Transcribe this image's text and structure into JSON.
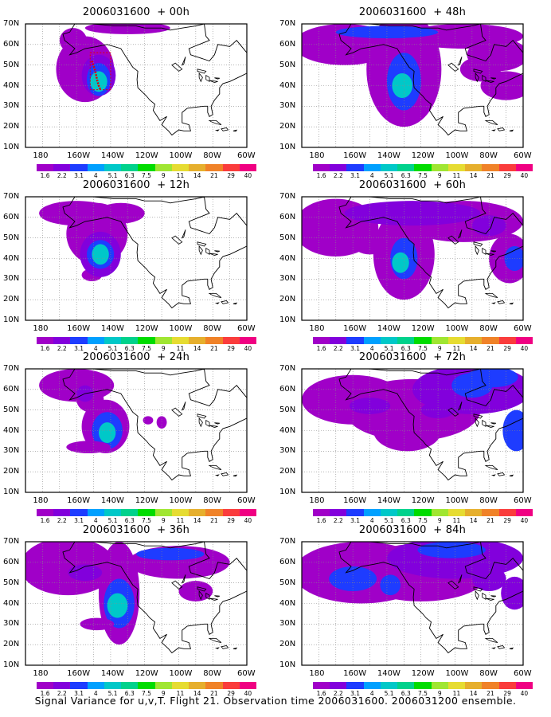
{
  "caption": "Signal Variance for u,v,T.  Flight 21.  Observation time 2006031600.  2006031200 ensemble.",
  "lat_labels": [
    "70N",
    "60N",
    "50N",
    "40N",
    "30N",
    "20N",
    "10N"
  ],
  "lon_labels": [
    "180",
    "160W",
    "140W",
    "120W",
    "100W",
    "80W",
    "60W"
  ],
  "colorbar": {
    "colors": [
      "#a000c8",
      "#8200dc",
      "#1e3cff",
      "#00a0ff",
      "#00c8c8",
      "#00d28c",
      "#00dc00",
      "#a0e632",
      "#e6dc32",
      "#e6af2d",
      "#f08228",
      "#fa3c3c",
      "#f00082"
    ],
    "labels": [
      "1.6",
      "2.2",
      "3.1",
      "4",
      "5.1",
      "6.3",
      "7.5",
      "9",
      "11",
      "14",
      "21",
      "29",
      "40"
    ]
  },
  "panels": [
    {
      "title": "2006031600  + 00h",
      "hours": 0
    },
    {
      "title": "2006031600  + 48h",
      "hours": 48
    },
    {
      "title": "2006031600  + 12h",
      "hours": 12
    },
    {
      "title": "2006031600  + 60h",
      "hours": 60
    },
    {
      "title": "2006031600  + 24h",
      "hours": 24
    },
    {
      "title": "2006031600  + 72h",
      "hours": 72
    },
    {
      "title": "2006031600  + 36h",
      "hours": 36
    },
    {
      "title": "2006031600  + 84h",
      "hours": 84
    }
  ]
}
